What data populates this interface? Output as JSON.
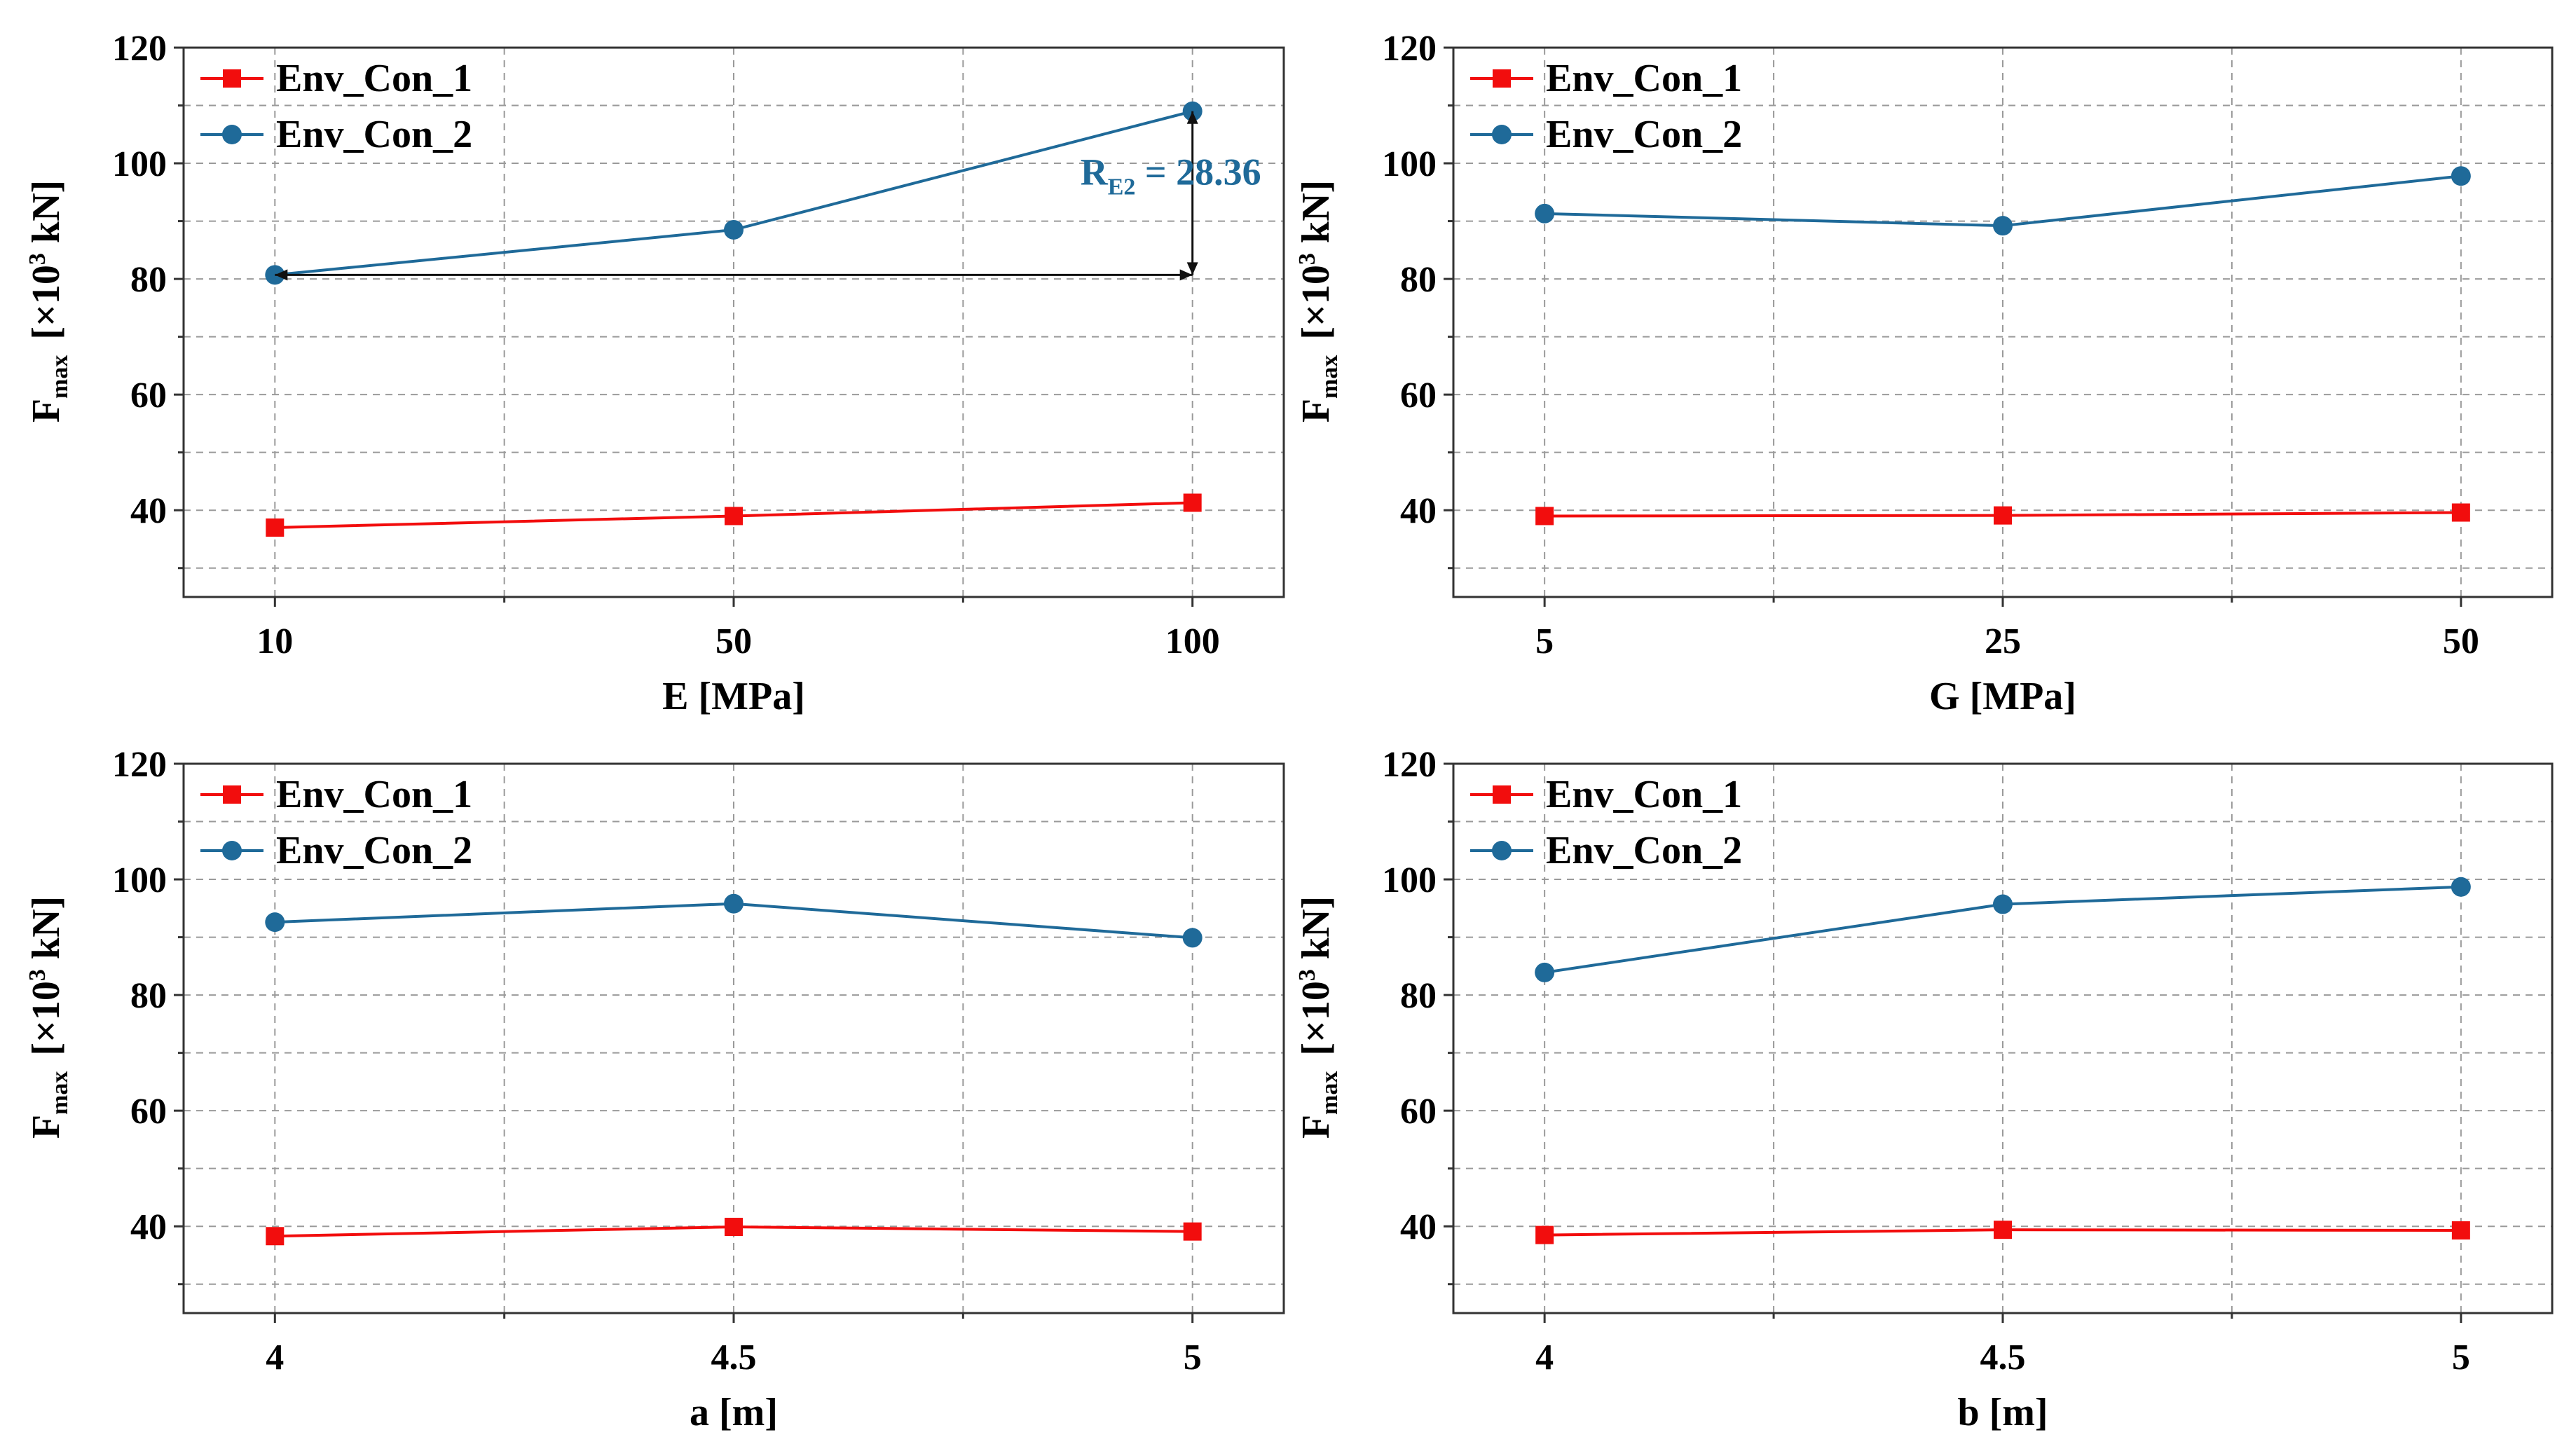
{
  "colors": {
    "series1": "#f20d0d",
    "series2": "#1f6a99",
    "annotation": "#1f6a99",
    "grid": "#9a9a9a",
    "frame": "#333333",
    "background": "#ffffff"
  },
  "chart_data": [
    {
      "type": "line",
      "xlabel": "E [MPa]",
      "ylabel": "Fmax [×10³ kN]",
      "ylabel_parts": {
        "main": "F",
        "sub": "max",
        "pre": "[×10",
        "sup": "3",
        "post": " kN]"
      },
      "categories": [
        "10",
        "50",
        "100"
      ],
      "ylim": [
        25,
        120
      ],
      "yticks": [
        40,
        60,
        80,
        100,
        120
      ],
      "minor_yticks": [
        30,
        50,
        70,
        90,
        110
      ],
      "grid": true,
      "legend": "top-left",
      "series": [
        {
          "name": "Env_Con_1",
          "marker": "square",
          "values": [
            37,
            39,
            41.3
          ]
        },
        {
          "name": "Env_Con_2",
          "marker": "circle",
          "values": [
            80.7,
            88.5,
            109
          ]
        }
      ],
      "annotation": {
        "text_main": "R",
        "text_sub": "E2",
        "text_rest": " = 28.36",
        "from_value": 80.7,
        "to_value": 109
      }
    },
    {
      "type": "line",
      "xlabel": "G [MPa]",
      "ylabel": "Fmax [×10³ kN]",
      "ylabel_parts": {
        "main": "F",
        "sub": "max",
        "pre": "[×10",
        "sup": "3",
        "post": " kN]"
      },
      "categories": [
        "5",
        "25",
        "50"
      ],
      "ylim": [
        25,
        120
      ],
      "yticks": [
        40,
        60,
        80,
        100,
        120
      ],
      "minor_yticks": [
        30,
        50,
        70,
        90,
        110
      ],
      "grid": true,
      "legend": "top-left",
      "series": [
        {
          "name": "Env_Con_1",
          "marker": "square",
          "values": [
            39,
            39.1,
            39.6
          ]
        },
        {
          "name": "Env_Con_2",
          "marker": "circle",
          "values": [
            91.3,
            89.2,
            97.8
          ]
        }
      ]
    },
    {
      "type": "line",
      "xlabel": "a [m]",
      "ylabel": "Fmax [×10³ kN]",
      "ylabel_parts": {
        "main": "F",
        "sub": "max",
        "pre": "[×10",
        "sup": "3",
        "post": " kN]"
      },
      "categories": [
        "4",
        "4.5",
        "5"
      ],
      "ylim": [
        25,
        120
      ],
      "yticks": [
        40,
        60,
        80,
        100,
        120
      ],
      "minor_yticks": [
        30,
        50,
        70,
        90,
        110
      ],
      "grid": true,
      "legend": "top-left",
      "series": [
        {
          "name": "Env_Con_1",
          "marker": "square",
          "values": [
            38.3,
            39.9,
            39.1
          ]
        },
        {
          "name": "Env_Con_2",
          "marker": "circle",
          "values": [
            92.6,
            95.8,
            89.9
          ]
        }
      ]
    },
    {
      "type": "line",
      "xlabel": "b [m]",
      "ylabel": "Fmax [×10³ kN]",
      "ylabel_parts": {
        "main": "F",
        "sub": "max",
        "pre": "[×10",
        "sup": "3",
        "post": " kN]"
      },
      "categories": [
        "4",
        "4.5",
        "5"
      ],
      "ylim": [
        25,
        120
      ],
      "yticks": [
        40,
        60,
        80,
        100,
        120
      ],
      "minor_yticks": [
        30,
        50,
        70,
        90,
        110
      ],
      "grid": true,
      "legend": "top-left",
      "series": [
        {
          "name": "Env_Con_1",
          "marker": "square",
          "values": [
            38.5,
            39.4,
            39.3
          ]
        },
        {
          "name": "Env_Con_2",
          "marker": "circle",
          "values": [
            83.9,
            95.7,
            98.7
          ]
        }
      ]
    }
  ]
}
